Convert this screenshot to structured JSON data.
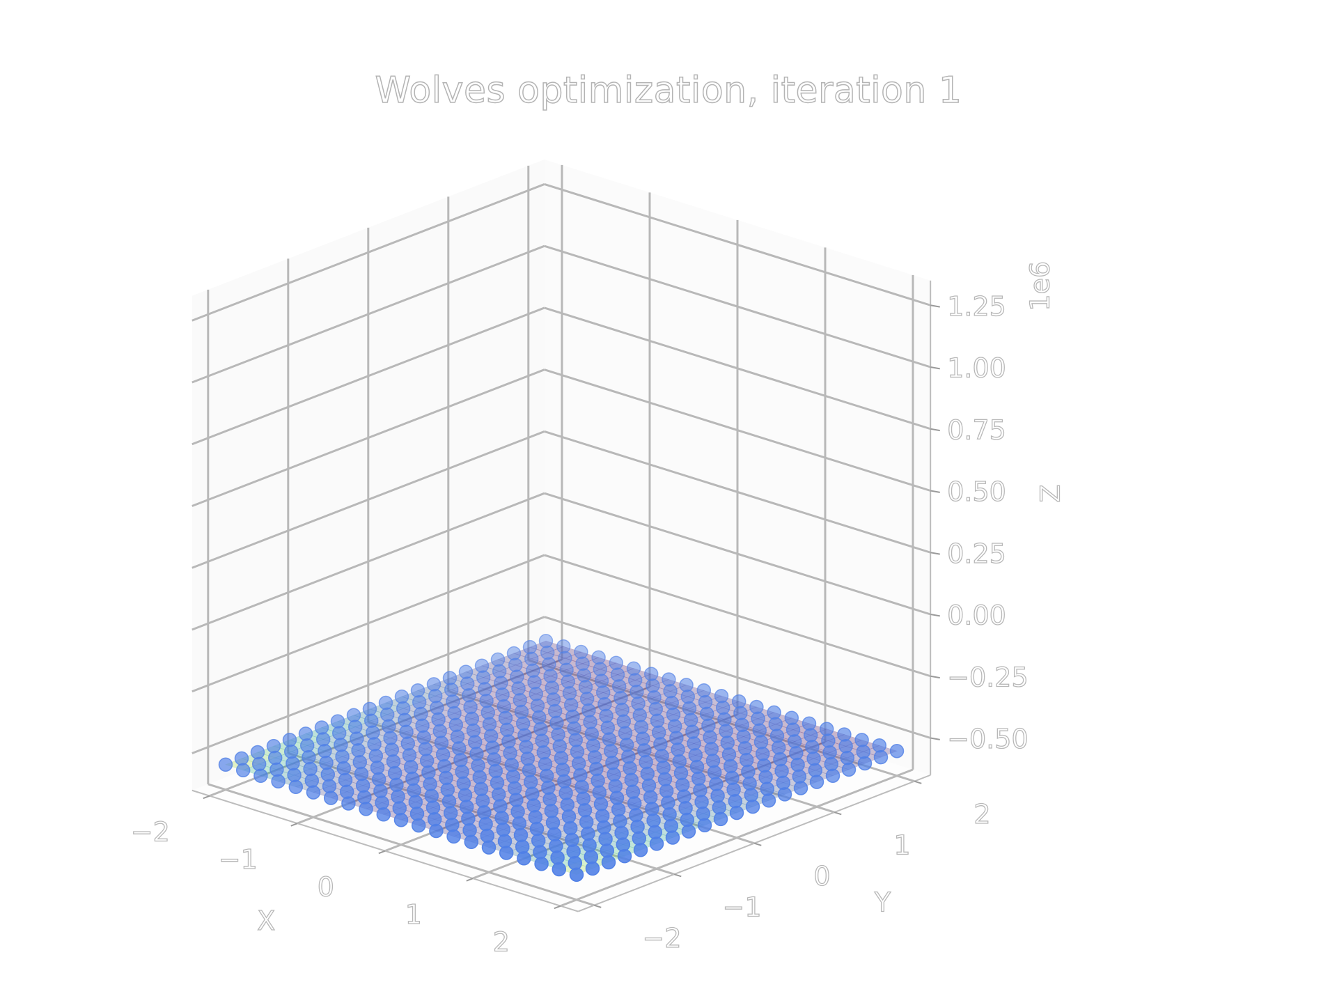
{
  "chart_data": {
    "type": "scatter3d",
    "title": "Wolves optimization, iteration 1",
    "xlabel": "X",
    "ylabel": "Y",
    "zlabel": "Z",
    "z_offset_label": "1e6",
    "xlim": [
      -2.2,
      2.2
    ],
    "ylim": [
      -2.2,
      2.2
    ],
    "zlim": [
      -0.65,
      1.35
    ],
    "x_ticks": [
      -2,
      -1,
      0,
      1,
      2
    ],
    "y_ticks": [
      -2,
      -1,
      0,
      1,
      2
    ],
    "z_ticks": [
      -0.5,
      -0.25,
      0.0,
      0.25,
      0.5,
      0.75,
      1.0,
      1.25
    ],
    "x_tick_labels": [
      "−2",
      "−1",
      "0",
      "1",
      "2"
    ],
    "y_tick_labels": [
      "−2",
      "−1",
      "0",
      "1",
      "2"
    ],
    "z_tick_labels": [
      "−0.50",
      "−0.25",
      "0.00",
      "0.25",
      "0.50",
      "0.75",
      "1.00",
      "1.25"
    ],
    "surface": {
      "grid_min": -2,
      "grid_max": 2,
      "grid_count": 21,
      "colormap": "viridis",
      "opacity": 0.28
    },
    "series": [
      {
        "marker_color": "#4f7fe6",
        "grid_min": -2,
        "grid_max": 2,
        "grid_count": 21
      }
    ]
  }
}
